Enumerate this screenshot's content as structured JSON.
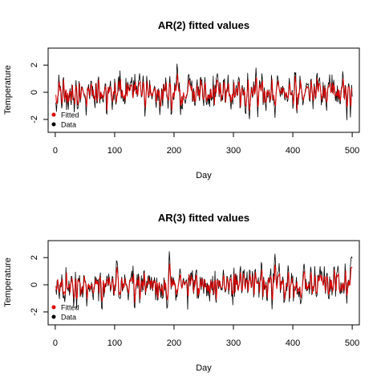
{
  "chart_data": [
    {
      "type": "line",
      "title": "AR(2) fitted values",
      "xlabel": "Day",
      "ylabel": "Temperature",
      "xlim": [
        -12,
        512
      ],
      "ylim": [
        -2.95,
        3.25
      ],
      "xticks": [
        0,
        100,
        200,
        300,
        400,
        500
      ],
      "yticks": [
        -2,
        0,
        2
      ],
      "legend_position": "bottom-left",
      "grid": false,
      "series": [
        {
          "name": "Fitted",
          "color": "#e00000",
          "seed": 17,
          "noise": 0.35,
          "shift": 0.0
        },
        {
          "name": "Data",
          "color": "#000000",
          "seed": 91,
          "noise": 0.95,
          "shift": 0.0
        }
      ]
    },
    {
      "type": "line",
      "title": "AR(3) fitted values",
      "xlabel": "Day",
      "ylabel": "Temperature",
      "xlim": [
        -12,
        512
      ],
      "ylim": [
        -2.95,
        3.25
      ],
      "xticks": [
        0,
        100,
        200,
        300,
        400,
        500
      ],
      "yticks": [
        -2,
        0,
        2
      ],
      "legend_position": "bottom-left",
      "grid": false,
      "series": [
        {
          "name": "Fitted",
          "color": "#e00000",
          "seed": 17,
          "noise": 0.35,
          "shift": 0.0
        },
        {
          "name": "Data",
          "color": "#000000",
          "seed": 91,
          "noise": 0.95,
          "shift": 0.0
        }
      ]
    }
  ],
  "data_points": 500
}
